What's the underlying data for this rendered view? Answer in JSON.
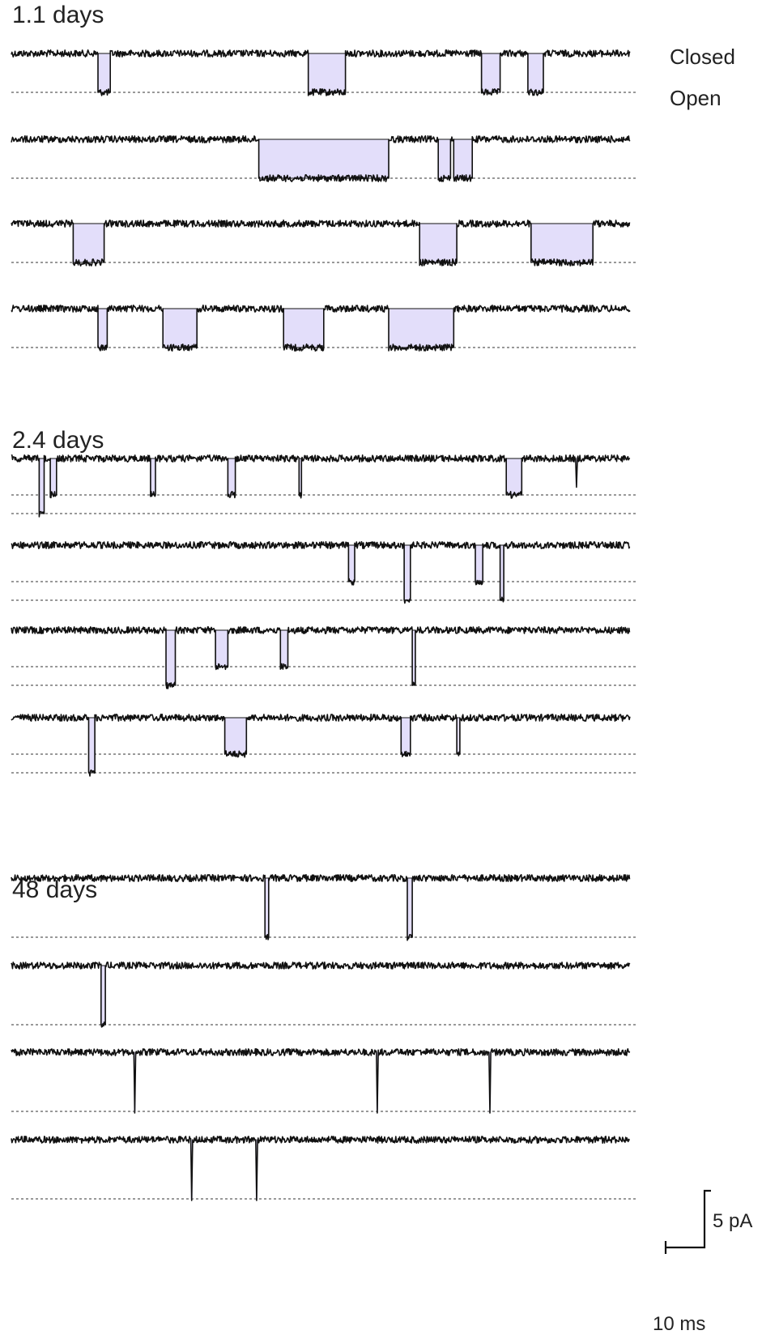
{
  "labels": {
    "closed": "Closed",
    "open": "Open"
  },
  "colors": {
    "trace": "#111111",
    "open_fill": "#e3defa",
    "baseline": "#333333"
  },
  "scale_bar": {
    "current_label": "5 pA",
    "time_label": "10 ms"
  },
  "panels": [
    {
      "title": "1.1 days",
      "traces": [
        {
          "levels": 1,
          "openings": [
            {
              "start": 14.0,
              "dur": 2.0,
              "level": 1
            },
            {
              "start": 48.0,
              "dur": 6.0,
              "level": 1
            },
            {
              "start": 76.0,
              "dur": 3.0,
              "level": 1
            },
            {
              "start": 83.5,
              "dur": 2.5,
              "level": 1
            }
          ]
        },
        {
          "levels": 1,
          "openings": [
            {
              "start": 40.0,
              "dur": 21.0,
              "level": 1
            },
            {
              "start": 69.0,
              "dur": 2.0,
              "level": 1
            },
            {
              "start": 71.5,
              "dur": 3.0,
              "level": 1
            }
          ]
        },
        {
          "levels": 1,
          "openings": [
            {
              "start": 10.0,
              "dur": 5.0,
              "level": 1
            },
            {
              "start": 66.0,
              "dur": 6.0,
              "level": 1
            },
            {
              "start": 84.0,
              "dur": 10.0,
              "level": 1
            }
          ]
        },
        {
          "levels": 1,
          "openings": [
            {
              "start": 14.0,
              "dur": 1.5,
              "level": 1
            },
            {
              "start": 24.5,
              "dur": 5.5,
              "level": 1
            },
            {
              "start": 44.0,
              "dur": 6.5,
              "level": 1
            },
            {
              "start": 61.0,
              "dur": 10.5,
              "level": 1
            }
          ]
        }
      ]
    },
    {
      "title": "2.4 days",
      "traces": [
        {
          "levels": 2,
          "openings": [
            {
              "start": 4.5,
              "dur": 0.8,
              "level": 2
            },
            {
              "start": 6.3,
              "dur": 1.0,
              "level": 1
            },
            {
              "start": 22.5,
              "dur": 0.8,
              "level": 1
            },
            {
              "start": 35.0,
              "dur": 1.2,
              "level": 1
            },
            {
              "start": 46.5,
              "dur": 0.4,
              "level": 1
            },
            {
              "start": 80.0,
              "dur": 2.5,
              "level": 1
            },
            {
              "start": 91.2,
              "dur": 0.3,
              "level": 0.5
            }
          ]
        },
        {
          "levels": 2,
          "openings": [
            {
              "start": 54.5,
              "dur": 1.0,
              "level": 1
            },
            {
              "start": 63.5,
              "dur": 1.0,
              "level": 2
            },
            {
              "start": 75.0,
              "dur": 1.2,
              "level": 1
            },
            {
              "start": 79.0,
              "dur": 0.6,
              "level": 2
            }
          ]
        },
        {
          "levels": 2,
          "openings": [
            {
              "start": 25.0,
              "dur": 1.5,
              "level": 2
            },
            {
              "start": 33.0,
              "dur": 2.0,
              "level": 1
            },
            {
              "start": 43.5,
              "dur": 1.2,
              "level": 1
            },
            {
              "start": 64.8,
              "dur": 0.5,
              "level": 2
            }
          ]
        },
        {
          "levels": 2,
          "openings": [
            {
              "start": 12.5,
              "dur": 1.0,
              "level": 2
            },
            {
              "start": 34.5,
              "dur": 3.5,
              "level": 1
            },
            {
              "start": 63.0,
              "dur": 1.5,
              "level": 1
            },
            {
              "start": 72.0,
              "dur": 0.5,
              "level": 1
            }
          ]
        }
      ]
    },
    {
      "title": "48 days",
      "traces": [
        {
          "levels": 1,
          "openings": [
            {
              "start": 41.0,
              "dur": 0.6,
              "level": 1
            },
            {
              "start": 64.0,
              "dur": 0.8,
              "level": 1
            }
          ]
        },
        {
          "levels": 1,
          "openings": [
            {
              "start": 14.5,
              "dur": 0.7,
              "level": 1
            }
          ]
        },
        {
          "levels": 1,
          "openings": [
            {
              "start": 19.8,
              "dur": 0.3,
              "level": 1
            },
            {
              "start": 59.0,
              "dur": 0.3,
              "level": 1
            },
            {
              "start": 77.2,
              "dur": 0.3,
              "level": 1
            }
          ]
        },
        {
          "levels": 1,
          "openings": [
            {
              "start": 29.0,
              "dur": 0.3,
              "level": 1
            },
            {
              "start": 39.5,
              "dur": 0.3,
              "level": 1
            }
          ]
        }
      ]
    }
  ]
}
